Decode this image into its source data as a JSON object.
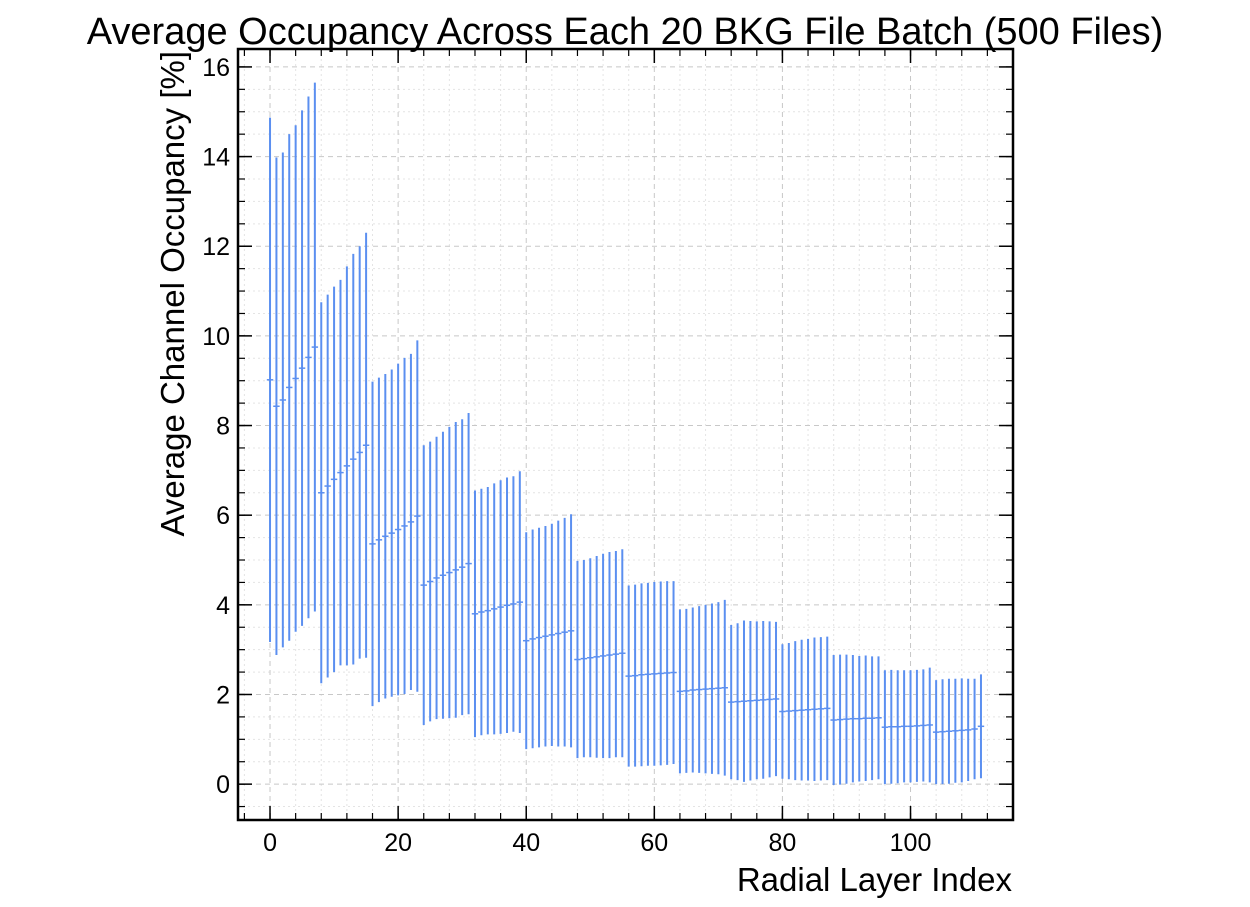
{
  "chart_data": {
    "type": "errorbar",
    "title": "Average Occupancy Across Each 20 BKG File Batch (500 Files)",
    "xlabel": "Radial Layer Index",
    "ylabel": "Average Channel Occupancy [%]",
    "xlim": [
      -5,
      116
    ],
    "ylim": [
      -0.8,
      16.4
    ],
    "xticks": [
      0,
      20,
      40,
      60,
      80,
      100
    ],
    "yticks": [
      0,
      2,
      4,
      6,
      8,
      10,
      12,
      14,
      16
    ],
    "grid": true,
    "series_color": "#5b8ff0",
    "groups": [
      {
        "x_start": 0,
        "means": [
          9.02,
          8.43,
          8.57,
          8.85,
          9.05,
          9.28,
          9.52,
          9.75
        ],
        "errors": [
          5.85,
          5.55,
          5.52,
          5.65,
          5.65,
          5.75,
          5.82,
          5.9
        ]
      },
      {
        "x_start": 8,
        "means": [
          6.5,
          6.65,
          6.8,
          6.95,
          7.1,
          7.25,
          7.4,
          7.56
        ],
        "errors": [
          4.25,
          4.27,
          4.3,
          4.3,
          4.45,
          4.58,
          4.6,
          4.74
        ]
      },
      {
        "x_start": 16,
        "means": [
          5.36,
          5.45,
          5.53,
          5.6,
          5.68,
          5.76,
          5.85,
          5.98
        ],
        "errors": [
          3.62,
          3.62,
          3.62,
          3.65,
          3.7,
          3.75,
          3.75,
          3.92
        ]
      },
      {
        "x_start": 24,
        "means": [
          4.44,
          4.52,
          4.6,
          4.66,
          4.72,
          4.78,
          4.84,
          4.92
        ],
        "errors": [
          3.12,
          3.12,
          3.15,
          3.2,
          3.25,
          3.3,
          3.3,
          3.36
        ]
      },
      {
        "x_start": 32,
        "means": [
          3.8,
          3.84,
          3.87,
          3.91,
          3.95,
          3.99,
          4.02,
          4.06
        ],
        "errors": [
          2.75,
          2.75,
          2.76,
          2.8,
          2.83,
          2.85,
          2.85,
          2.92
        ]
      },
      {
        "x_start": 40,
        "means": [
          3.2,
          3.24,
          3.27,
          3.3,
          3.33,
          3.36,
          3.39,
          3.42
        ],
        "errors": [
          2.42,
          2.44,
          2.45,
          2.46,
          2.48,
          2.52,
          2.55,
          2.6
        ]
      },
      {
        "x_start": 48,
        "means": [
          2.78,
          2.8,
          2.82,
          2.84,
          2.86,
          2.88,
          2.9,
          2.92
        ],
        "errors": [
          2.2,
          2.2,
          2.22,
          2.25,
          2.28,
          2.3,
          2.3,
          2.32
        ]
      },
      {
        "x_start": 56,
        "means": [
          2.41,
          2.42,
          2.44,
          2.45,
          2.46,
          2.47,
          2.48,
          2.49
        ],
        "errors": [
          2.02,
          2.03,
          2.04,
          2.04,
          2.05,
          2.05,
          2.05,
          2.04
        ]
      },
      {
        "x_start": 64,
        "means": [
          2.07,
          2.08,
          2.1,
          2.11,
          2.12,
          2.13,
          2.14,
          2.15
        ],
        "errors": [
          1.83,
          1.83,
          1.84,
          1.86,
          1.88,
          1.9,
          1.92,
          1.96
        ]
      },
      {
        "x_start": 72,
        "means": [
          1.83,
          1.84,
          1.85,
          1.86,
          1.87,
          1.88,
          1.89,
          1.9
        ],
        "errors": [
          1.72,
          1.75,
          1.8,
          1.78,
          1.76,
          1.76,
          1.74,
          1.72
        ]
      },
      {
        "x_start": 80,
        "means": [
          1.62,
          1.63,
          1.64,
          1.65,
          1.66,
          1.67,
          1.68,
          1.69
        ],
        "errors": [
          1.5,
          1.52,
          1.55,
          1.57,
          1.58,
          1.6,
          1.6,
          1.6
        ]
      },
      {
        "x_start": 88,
        "means": [
          1.43,
          1.44,
          1.45,
          1.46,
          1.46,
          1.47,
          1.47,
          1.48
        ],
        "errors": [
          1.45,
          1.45,
          1.44,
          1.42,
          1.4,
          1.4,
          1.38,
          1.37
        ]
      },
      {
        "x_start": 96,
        "means": [
          1.27,
          1.28,
          1.28,
          1.29,
          1.29,
          1.3,
          1.31,
          1.32
        ],
        "errors": [
          1.27,
          1.27,
          1.26,
          1.25,
          1.25,
          1.25,
          1.25,
          1.28
        ]
      },
      {
        "x_start": 104,
        "means": [
          1.16,
          1.17,
          1.18,
          1.19,
          1.2,
          1.21,
          1.23,
          1.29
        ],
        "errors": [
          1.16,
          1.17,
          1.17,
          1.16,
          1.16,
          1.14,
          1.12,
          1.16
        ]
      }
    ]
  }
}
